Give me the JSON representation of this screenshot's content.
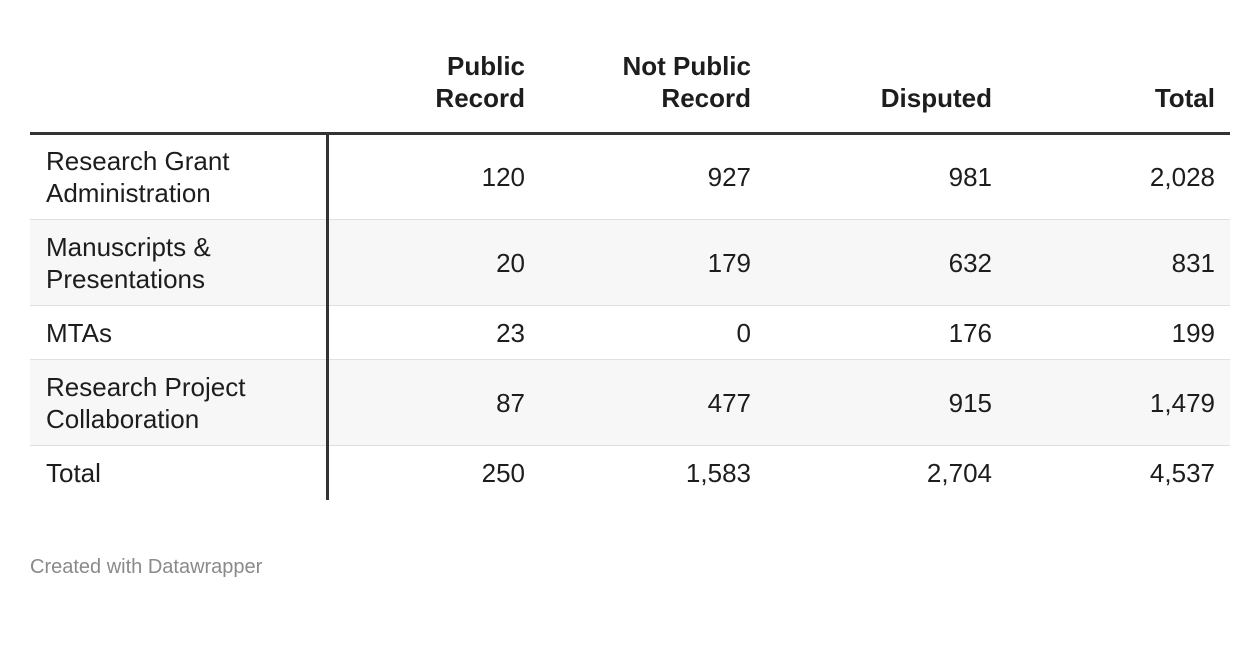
{
  "table": {
    "columns": [
      "",
      "Public Record",
      "Not Public Record",
      "Disputed",
      "Total"
    ],
    "rows": [
      [
        "Research Grant Administration",
        "120",
        "927",
        "981",
        "2,028"
      ],
      [
        "Manuscripts & Presentations",
        "20",
        "179",
        "632",
        "831"
      ],
      [
        "MTAs",
        "23",
        "0",
        "176",
        "199"
      ],
      [
        "Research Project Collaboration",
        "87",
        "477",
        "915",
        "1,479"
      ],
      [
        "Total",
        "250",
        "1,583",
        "2,704",
        "4,537"
      ]
    ]
  },
  "footer": "Created with Datawrapper"
}
